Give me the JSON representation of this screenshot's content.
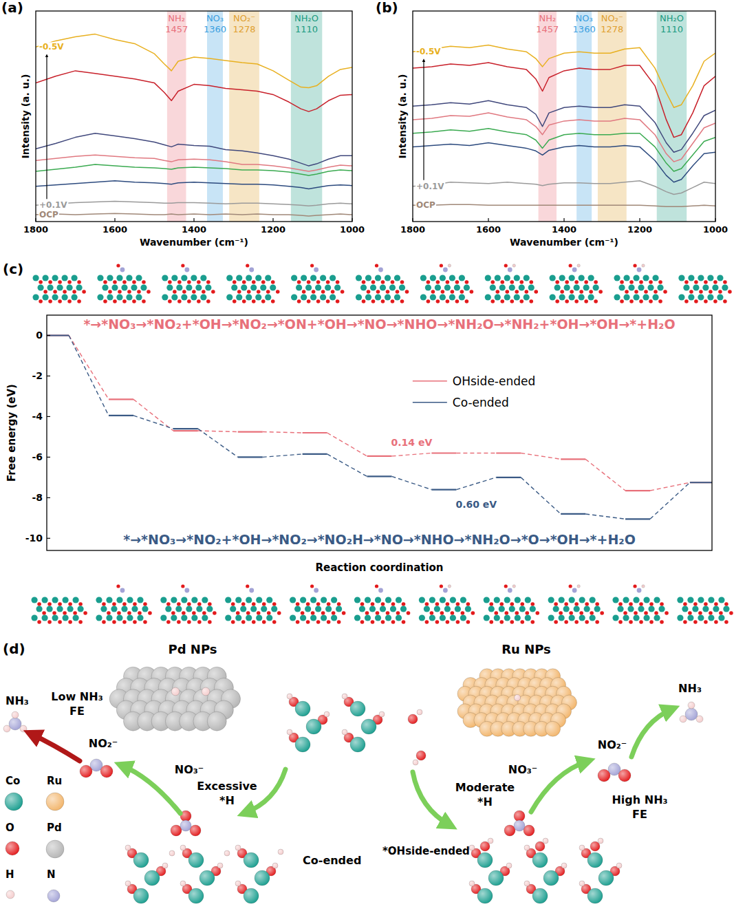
{
  "panel_labels": [
    "(a)",
    "(b)",
    "(c)",
    "(d)"
  ],
  "chart_data": [
    {
      "type": "line",
      "x_label": "Wavenumber (cm⁻¹)",
      "y_label": "Intensity (a. u.)",
      "xlim": [
        1800,
        1000
      ],
      "xticks": [
        1800,
        1600,
        1400,
        1200,
        1000
      ],
      "ylim": [
        0,
        310
      ],
      "tick_labels": "x",
      "grid": false,
      "x": [
        1800,
        1750,
        1700,
        1650,
        1600,
        1550,
        1500,
        1475,
        1457,
        1440,
        1400,
        1360,
        1320,
        1278,
        1240,
        1200,
        1160,
        1130,
        1110,
        1090,
        1060,
        1030,
        1000
      ],
      "bands": [
        {
          "label": "NH₂",
          "center": 1457,
          "range": [
            1468,
            1420
          ],
          "color": "#e8707a"
        },
        {
          "label": "NO₃",
          "center": 1360,
          "range": [
            1367,
            1327
          ],
          "color": "#3a9fe0"
        },
        {
          "label": "NO₂⁻",
          "center": 1278,
          "range": [
            1311,
            1235
          ],
          "color": "#e0a030"
        },
        {
          "label": "NH₂O",
          "center": 1110,
          "range": [
            1155,
            1076
          ],
          "color": "#1a9a80"
        }
      ],
      "series": [
        {
          "name": "OCP",
          "color": "#a08878",
          "values": [
            10,
            11,
            10,
            11,
            12,
            11,
            10,
            10,
            11,
            10,
            11,
            10,
            11,
            10,
            11,
            10,
            10,
            9,
            8,
            9,
            10,
            11,
            10
          ]
        },
        {
          "name": "+0.1V",
          "color": "#9a9a9a",
          "values": [
            24,
            26,
            28,
            29,
            30,
            29,
            28,
            27,
            27,
            28,
            28,
            27,
            26,
            27,
            27,
            26,
            25,
            24,
            23,
            24,
            26,
            27,
            26
          ]
        },
        {
          "color": "#2c4a7e",
          "values": [
            52,
            54,
            56,
            58,
            60,
            58,
            57,
            56,
            55,
            57,
            58,
            57,
            56,
            55,
            55,
            54,
            52,
            50,
            48,
            50,
            53,
            54,
            53
          ]
        },
        {
          "color": "#3aaa50",
          "values": [
            74,
            77,
            80,
            84,
            82,
            80,
            79,
            78,
            77,
            79,
            80,
            79,
            78,
            76,
            76,
            75,
            73,
            70,
            68,
            70,
            74,
            76,
            75
          ]
        },
        {
          "color": "#e07880",
          "values": [
            90,
            93,
            96,
            98,
            96,
            94,
            93,
            90,
            88,
            91,
            92,
            91,
            88,
            84,
            84,
            82,
            79,
            76,
            74,
            76,
            80,
            83,
            82
          ]
        },
        {
          "color": "#40487c",
          "values": [
            107,
            115,
            124,
            130,
            126,
            122,
            117,
            113,
            110,
            114,
            112,
            111,
            106,
            104,
            101,
            97,
            92,
            86,
            82,
            85,
            92,
            97,
            97
          ]
        },
        {
          "color": "#c8202a",
          "values": [
            204,
            214,
            222,
            218,
            214,
            210,
            204,
            190,
            178,
            192,
            202,
            200,
            196,
            194,
            192,
            187,
            176,
            166,
            162,
            166,
            178,
            186,
            187
          ]
        },
        {
          "name": "-0.5V",
          "color": "#e8b020",
          "values": [
            257,
            266,
            272,
            276,
            268,
            262,
            247,
            232,
            222,
            236,
            242,
            240,
            237,
            234,
            232,
            222,
            208,
            198,
            197,
            200,
            214,
            224,
            227
          ]
        }
      ]
    },
    {
      "type": "line",
      "x_label": "Wavenumber (cm⁻¹)",
      "y_label": "Intensity (a. u.)",
      "xlim": [
        1800,
        1000
      ],
      "xticks": [
        1800,
        1600,
        1400,
        1200,
        1000
      ],
      "ylim": [
        0,
        310
      ],
      "tick_labels": "x",
      "grid": false,
      "x": [
        1800,
        1750,
        1700,
        1650,
        1600,
        1550,
        1500,
        1475,
        1457,
        1440,
        1400,
        1360,
        1320,
        1278,
        1240,
        1200,
        1160,
        1130,
        1110,
        1090,
        1060,
        1030,
        1000
      ],
      "bands": [
        {
          "label": "NH₂",
          "center": 1457,
          "range": [
            1468,
            1420
          ],
          "color": "#e8707a"
        },
        {
          "label": "NO₃",
          "center": 1360,
          "range": [
            1367,
            1327
          ],
          "color": "#3a9fe0"
        },
        {
          "label": "NO₂⁻",
          "center": 1278,
          "range": [
            1311,
            1235
          ],
          "color": "#e0a030"
        },
        {
          "label": "NH₂O",
          "center": 1110,
          "range": [
            1155,
            1076
          ],
          "color": "#1a9a80"
        }
      ],
      "series": [
        {
          "name": "OCP",
          "color": "#a08878",
          "values": [
            24,
            24,
            25,
            25,
            24,
            24,
            24,
            24,
            24,
            24,
            24,
            24,
            24,
            24,
            24,
            24,
            23,
            22,
            22,
            22,
            23,
            24,
            23
          ]
        },
        {
          "name": "+0.1V",
          "color": "#9a9a9a",
          "values": [
            52,
            54,
            58,
            57,
            56,
            58,
            56,
            55,
            53,
            55,
            57,
            57,
            56,
            56,
            58,
            60,
            52,
            44,
            40,
            42,
            50,
            58,
            56
          ]
        },
        {
          "color": "#2c4a7e",
          "values": [
            110,
            112,
            114,
            112,
            116,
            112,
            108,
            104,
            98,
            105,
            110,
            112,
            110,
            110,
            112,
            110,
            90,
            68,
            58,
            62,
            82,
            100,
            102
          ]
        },
        {
          "color": "#3aaa50",
          "values": [
            130,
            132,
            135,
            133,
            137,
            132,
            128,
            120,
            108,
            120,
            128,
            130,
            128,
            128,
            130,
            130,
            110,
            86,
            74,
            78,
            98,
            118,
            124
          ]
        },
        {
          "color": "#e07880",
          "values": [
            150,
            152,
            156,
            155,
            160,
            154,
            150,
            140,
            128,
            142,
            148,
            150,
            148,
            148,
            152,
            150,
            128,
            100,
            88,
            92,
            115,
            138,
            145
          ]
        },
        {
          "color": "#40487c",
          "values": [
            170,
            172,
            175,
            173,
            178,
            172,
            168,
            158,
            140,
            160,
            168,
            170,
            168,
            168,
            172,
            170,
            146,
            116,
            102,
            106,
            130,
            156,
            164
          ]
        },
        {
          "color": "#c8202a",
          "values": [
            226,
            228,
            232,
            230,
            234,
            228,
            224,
            210,
            192,
            212,
            222,
            226,
            224,
            224,
            230,
            230,
            200,
            150,
            124,
            128,
            160,
            200,
            214
          ]
        },
        {
          "name": "-0.5V",
          "color": "#e8b020",
          "values": [
            250,
            254,
            258,
            256,
            260,
            254,
            250,
            240,
            228,
            240,
            248,
            250,
            248,
            248,
            254,
            256,
            226,
            190,
            168,
            172,
            200,
            236,
            248
          ]
        }
      ]
    },
    {
      "type": "energy_profile",
      "x_label": "Reaction coordination",
      "y_label": "Free energy (eV)",
      "x": [
        0,
        1,
        2,
        3,
        4,
        5,
        6,
        7,
        8,
        9,
        10
      ],
      "xlim": [
        -0.15,
        10.15
      ],
      "ylim": [
        -10.6,
        1.0
      ],
      "yticks": [
        0,
        -2,
        -4,
        -6,
        -8,
        -10
      ],
      "tick_labels": "y",
      "grid": false,
      "legend": "center",
      "series": [
        {
          "name": "OHside-ended",
          "color": "#e8707a",
          "line_style": "dashed",
          "values": [
            0,
            -3.15,
            -4.7,
            -4.75,
            -4.8,
            -5.95,
            -5.8,
            -5.8,
            -6.1,
            -7.65,
            -7.25
          ]
        },
        {
          "name": "Co-ended",
          "color": "#3a5a85",
          "line_style": "dashed",
          "values": [
            0,
            -3.95,
            -4.6,
            -6.0,
            -5.85,
            -6.95,
            -7.6,
            -7.0,
            -8.8,
            -9.05,
            -7.25
          ]
        }
      ],
      "pathways": [
        {
          "series": 0,
          "text": "*→*NO₃→*NO₂+*OH→*NO₂→*ON+*OH→*NO→*NHO→*NH₂O→*NH₂+*OH→*OH→*+H₂O"
        },
        {
          "series": 1,
          "text": "*→*NO₃→*NO₂+*OH→*NO₂→*NO₂H→*NO→*NHO→*NH₂O→*O→*OH→*+H₂O"
        }
      ],
      "annotations": [
        {
          "text": "0.14 eV",
          "series": 0,
          "from": 5,
          "to": 6
        },
        {
          "text": "0.60 eV",
          "series": 1,
          "from": 6,
          "to": 7
        }
      ]
    }
  ],
  "schematic": {
    "catalysts": [
      {
        "label": "Pd NPs"
      },
      {
        "label": "Ru NPs"
      }
    ],
    "left": {
      "product": "NH₃",
      "outcome": "Low NH₃ FE",
      "intermediate": "NO₂⁻",
      "reactant": "NO₃⁻",
      "hydrogen": "Excessive *H",
      "site": "Co-ended"
    },
    "right": {
      "product": "NH₃",
      "outcome": "High NH₃ FE",
      "intermediate": "NO₂⁻",
      "reactant": "NO₃⁻",
      "hydrogen": "Moderate *H",
      "site": "*OHside-ended"
    },
    "atom_legend": [
      {
        "label": "Co",
        "color": "#1a9e8f"
      },
      {
        "label": "Ru",
        "color": "#f2b56b"
      },
      {
        "label": "O",
        "color": "#e31a1c"
      },
      {
        "label": "Pd",
        "color": "#b5b5b5"
      },
      {
        "label": "H",
        "color": "#f4cccc"
      },
      {
        "label": "N",
        "color": "#a3a3d6"
      }
    ]
  }
}
